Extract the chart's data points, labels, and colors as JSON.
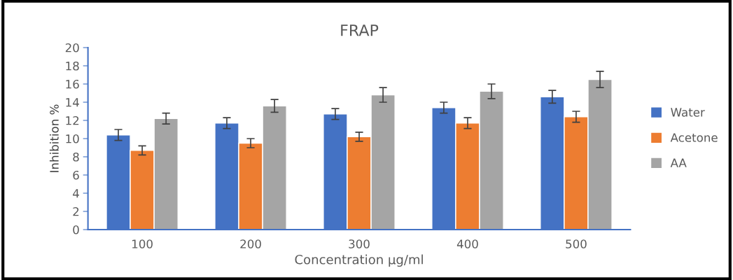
{
  "chart_data": {
    "type": "bar",
    "title": "FRAP",
    "xlabel": "Concentration µg/ml",
    "ylabel": "Inhibition %",
    "categories": [
      "100",
      "200",
      "300",
      "400",
      "500"
    ],
    "series": [
      {
        "name": "Water",
        "color": "#4472c4",
        "values": [
          10.4,
          11.7,
          12.7,
          13.4,
          14.6
        ],
        "errors": [
          0.6,
          0.6,
          0.6,
          0.6,
          0.7
        ]
      },
      {
        "name": "Acetone",
        "color": "#ed7d31",
        "values": [
          8.7,
          9.5,
          10.2,
          11.7,
          12.4
        ],
        "errors": [
          0.5,
          0.5,
          0.5,
          0.6,
          0.6
        ]
      },
      {
        "name": "AA",
        "color": "#a5a5a5",
        "values": [
          12.2,
          13.6,
          14.8,
          15.2,
          16.5
        ],
        "errors": [
          0.6,
          0.7,
          0.8,
          0.8,
          0.9
        ]
      }
    ],
    "ylim": [
      0,
      20
    ],
    "yticks": [
      0,
      2,
      4,
      6,
      8,
      10,
      12,
      14,
      16,
      18,
      20
    ],
    "grid": false,
    "legend": "right"
  }
}
